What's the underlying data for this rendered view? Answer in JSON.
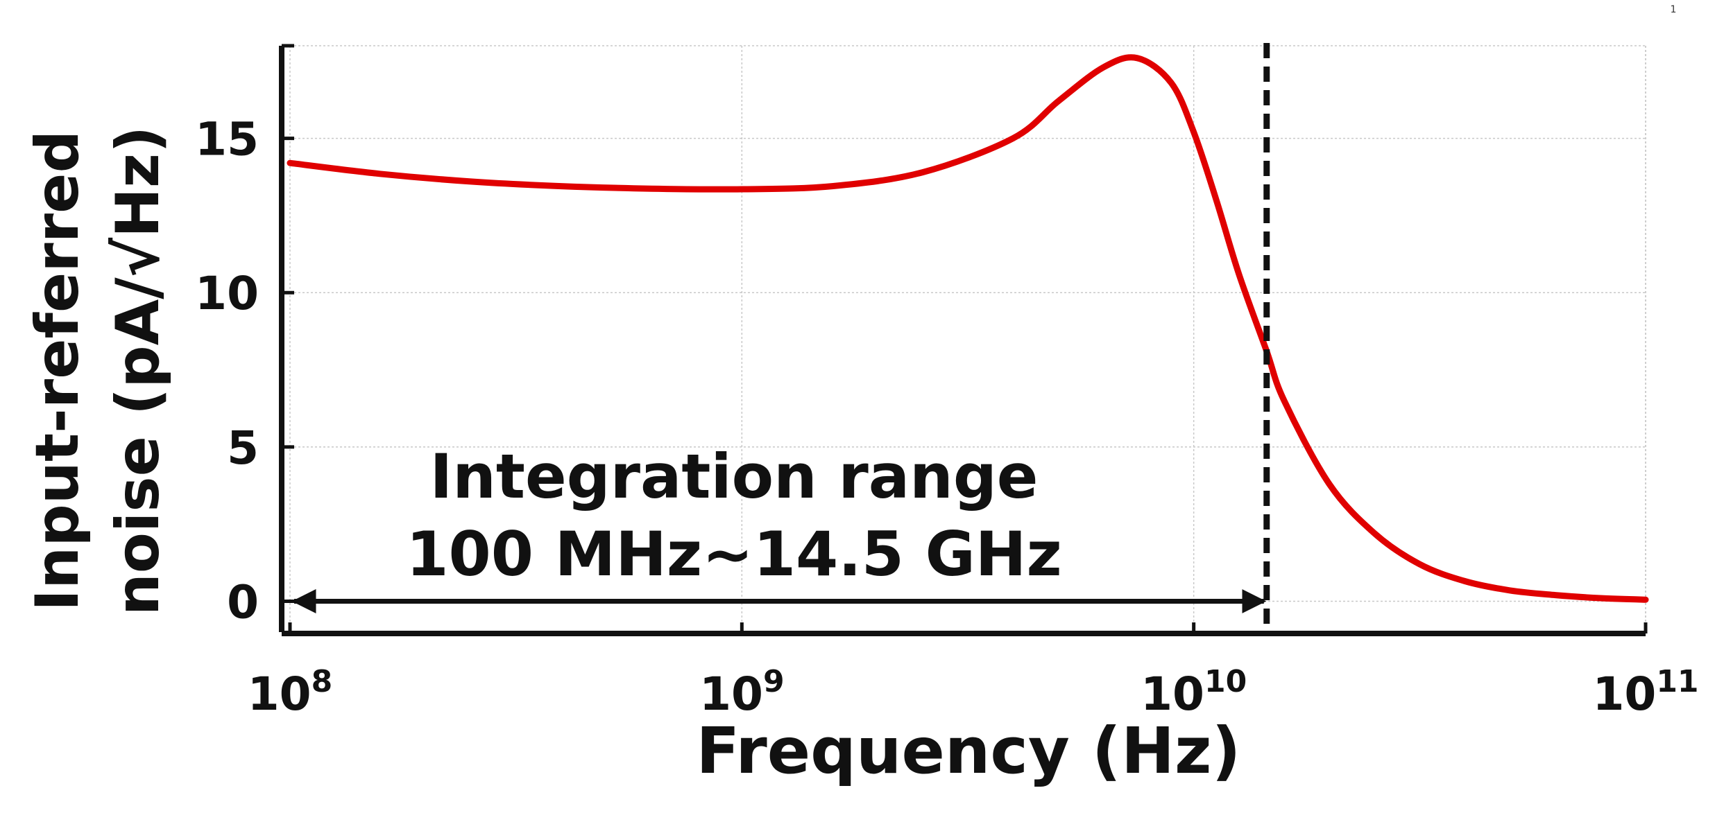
{
  "page": {
    "corner_mark": "1"
  },
  "chart_data": {
    "type": "line",
    "xlabel": "Frequency (Hz)",
    "ylabel_line1": "Input-referred",
    "ylabel_line2": "noise (pA/√Hz)",
    "x_scale": "log",
    "xlim": [
      100000000,
      100000000000
    ],
    "ylim": [
      -1,
      18
    ],
    "grid": true,
    "x_ticks": [
      {
        "value": 100000000,
        "base": "10",
        "exp": "8"
      },
      {
        "value": 1000000000,
        "base": "10",
        "exp": "9"
      },
      {
        "value": 10000000000,
        "base": "10",
        "exp": "10"
      },
      {
        "value": 100000000000,
        "base": "10",
        "exp": "11"
      }
    ],
    "y_ticks": [
      {
        "value": 0,
        "label": "0"
      },
      {
        "value": 5,
        "label": "5"
      },
      {
        "value": 10,
        "label": "10"
      },
      {
        "value": 15,
        "label": "15"
      }
    ],
    "series": [
      {
        "color": "#e00000",
        "x": [
          100000000,
          158000000,
          251000000,
          398000000,
          631000000,
          1000000000,
          1585000000,
          2512000000,
          3981000000,
          5012000000,
          6310000000,
          7500000000,
          8913000000,
          10000000000,
          11220000000,
          12590000000,
          14500000000,
          15850000000,
          19950000000,
          25120000000,
          31620000000,
          39810000000,
          50120000000,
          63100000000,
          79430000000,
          100000000000
        ],
        "y": [
          14.2,
          13.85,
          13.6,
          13.45,
          13.37,
          13.35,
          13.45,
          13.9,
          15.0,
          16.2,
          17.3,
          17.6,
          16.8,
          15.2,
          13.0,
          10.6,
          8.1,
          6.5,
          3.8,
          2.2,
          1.2,
          0.65,
          0.35,
          0.2,
          0.1,
          0.05
        ]
      }
    ],
    "cutoff_line": {
      "x": 14500000000,
      "color": "#111111",
      "style": "dashed"
    },
    "annotation": {
      "line1": "Integration range",
      "line2": "100 MHz~14.5 GHz",
      "arrow_from": 100000000,
      "arrow_to": 14500000000,
      "arrow_y": 0
    }
  }
}
